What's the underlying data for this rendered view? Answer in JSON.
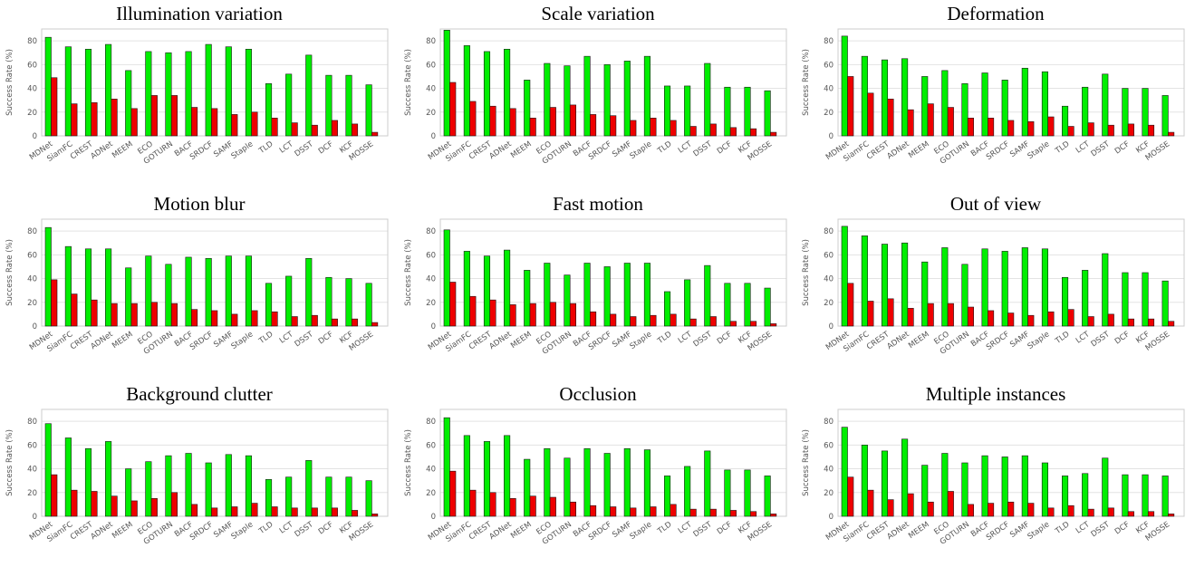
{
  "chart_data": [
    {
      "type": "bar",
      "title": "Illumination variation",
      "ylabel": "Success Rate (%)",
      "ylim": [
        0,
        90
      ],
      "yticks": [
        0,
        20,
        40,
        60,
        80
      ],
      "categories": [
        "MDNet",
        "SiamFC",
        "CREST",
        "ADNet",
        "MEEM",
        "ECO",
        "GOTURN",
        "BACF",
        "SRDCF",
        "SAMF",
        "Staple",
        "TLD",
        "LCT",
        "DSST",
        "DCF",
        "KCF",
        "MOSSE"
      ],
      "series": [
        {
          "color": "#00ee00",
          "values": [
            83,
            75,
            73,
            77,
            55,
            71,
            70,
            71,
            77,
            75,
            73,
            44,
            52,
            68,
            51,
            51,
            43
          ]
        },
        {
          "color": "#ee0000",
          "values": [
            49,
            27,
            28,
            31,
            23,
            34,
            34,
            24,
            23,
            18,
            20,
            15,
            11,
            9,
            13,
            10,
            3
          ]
        }
      ]
    },
    {
      "type": "bar",
      "title": "Scale variation",
      "ylabel": "Success Rate (%)",
      "ylim": [
        0,
        90
      ],
      "yticks": [
        0,
        20,
        40,
        60,
        80
      ],
      "categories": [
        "MDNet",
        "SiamFC",
        "CREST",
        "ADNet",
        "MEEM",
        "ECO",
        "GOTURN",
        "BACF",
        "SRDCF",
        "SAMF",
        "Staple",
        "TLD",
        "LCT",
        "DSST",
        "DCF",
        "KCF",
        "MOSSE"
      ],
      "series": [
        {
          "color": "#00ee00",
          "values": [
            89,
            76,
            71,
            73,
            47,
            61,
            59,
            67,
            60,
            63,
            67,
            42,
            42,
            61,
            41,
            41,
            38
          ]
        },
        {
          "color": "#ee0000",
          "values": [
            45,
            29,
            25,
            23,
            15,
            24,
            26,
            18,
            17,
            13,
            15,
            13,
            8,
            10,
            7,
            6,
            3
          ]
        }
      ]
    },
    {
      "type": "bar",
      "title": "Deformation",
      "ylabel": "Success Rate (%)",
      "ylim": [
        0,
        90
      ],
      "yticks": [
        0,
        20,
        40,
        60,
        80
      ],
      "categories": [
        "MDNet",
        "SiamFC",
        "CREST",
        "ADNet",
        "MEEM",
        "ECO",
        "GOTURN",
        "BACF",
        "SRDCF",
        "SAMF",
        "Staple",
        "TLD",
        "LCT",
        "DSST",
        "DCF",
        "KCF",
        "MOSSE"
      ],
      "series": [
        {
          "color": "#00ee00",
          "values": [
            84,
            67,
            64,
            65,
            50,
            55,
            44,
            53,
            47,
            57,
            54,
            25,
            41,
            52,
            40,
            40,
            34
          ]
        },
        {
          "color": "#ee0000",
          "values": [
            50,
            36,
            31,
            22,
            27,
            24,
            15,
            15,
            13,
            12,
            16,
            8,
            11,
            9,
            10,
            9,
            3
          ]
        }
      ]
    },
    {
      "type": "bar",
      "title": "Motion blur",
      "ylabel": "Success Rate (%)",
      "ylim": [
        0,
        90
      ],
      "yticks": [
        0,
        20,
        40,
        60,
        80
      ],
      "categories": [
        "MDNet",
        "SiamFC",
        "CREST",
        "ADNet",
        "MEEM",
        "ECO",
        "GOTURN",
        "BACF",
        "SRDCF",
        "SAMF",
        "Staple",
        "TLD",
        "LCT",
        "DSST",
        "DCF",
        "KCF",
        "MOSSE"
      ],
      "series": [
        {
          "color": "#00ee00",
          "values": [
            83,
            67,
            65,
            65,
            49,
            59,
            52,
            58,
            57,
            59,
            59,
            36,
            42,
            57,
            41,
            40,
            36
          ]
        },
        {
          "color": "#ee0000",
          "values": [
            39,
            27,
            22,
            19,
            19,
            20,
            19,
            14,
            13,
            10,
            13,
            12,
            8,
            9,
            6,
            6,
            3
          ]
        }
      ]
    },
    {
      "type": "bar",
      "title": "Fast motion",
      "ylabel": "Success Rate (%)",
      "ylim": [
        0,
        90
      ],
      "yticks": [
        0,
        20,
        40,
        60,
        80
      ],
      "categories": [
        "MDNet",
        "SiamFC",
        "CREST",
        "ADNet",
        "MEEM",
        "ECO",
        "GOTURN",
        "BACF",
        "SRDCF",
        "SAMF",
        "Staple",
        "TLD",
        "LCT",
        "DSST",
        "DCF",
        "KCF",
        "MOSSE"
      ],
      "series": [
        {
          "color": "#00ee00",
          "values": [
            81,
            63,
            59,
            64,
            47,
            53,
            43,
            53,
            50,
            53,
            53,
            29,
            39,
            51,
            36,
            36,
            32
          ]
        },
        {
          "color": "#ee0000",
          "values": [
            37,
            25,
            22,
            18,
            19,
            20,
            19,
            12,
            10,
            8,
            9,
            10,
            6,
            8,
            4,
            4,
            2
          ]
        }
      ]
    },
    {
      "type": "bar",
      "title": "Out of view",
      "ylabel": "Success Rate (%)",
      "ylim": [
        0,
        90
      ],
      "yticks": [
        0,
        20,
        40,
        60,
        80
      ],
      "categories": [
        "MDNet",
        "SiamFC",
        "CREST",
        "ADNet",
        "MEEM",
        "ECO",
        "GOTURN",
        "BACF",
        "SRDCF",
        "SAMF",
        "Staple",
        "TLD",
        "LCT",
        "DSST",
        "DCF",
        "KCF",
        "MOSSE"
      ],
      "series": [
        {
          "color": "#00ee00",
          "values": [
            84,
            76,
            69,
            70,
            54,
            66,
            52,
            65,
            63,
            66,
            65,
            41,
            47,
            61,
            45,
            45,
            38
          ]
        },
        {
          "color": "#ee0000",
          "values": [
            36,
            21,
            23,
            15,
            19,
            19,
            16,
            13,
            11,
            9,
            12,
            14,
            8,
            10,
            6,
            6,
            4
          ]
        }
      ]
    },
    {
      "type": "bar",
      "title": "Background clutter",
      "ylabel": "Success Rate (%)",
      "ylim": [
        0,
        90
      ],
      "yticks": [
        0,
        20,
        40,
        60,
        80
      ],
      "categories": [
        "MDNet",
        "SiamFC",
        "CREST",
        "ADNet",
        "MEEM",
        "ECO",
        "GOTURN",
        "BACF",
        "SRDCF",
        "SAMF",
        "Staple",
        "TLD",
        "LCT",
        "DSST",
        "DCF",
        "KCF",
        "MOSSE"
      ],
      "series": [
        {
          "color": "#00ee00",
          "values": [
            78,
            66,
            57,
            63,
            40,
            46,
            51,
            53,
            45,
            52,
            51,
            31,
            33,
            47,
            33,
            33,
            30
          ]
        },
        {
          "color": "#ee0000",
          "values": [
            35,
            22,
            21,
            17,
            13,
            15,
            20,
            10,
            7,
            8,
            11,
            8,
            7,
            7,
            7,
            5,
            2
          ]
        }
      ]
    },
    {
      "type": "bar",
      "title": "Occlusion",
      "ylabel": "Success Rate (%)",
      "ylim": [
        0,
        90
      ],
      "yticks": [
        0,
        20,
        40,
        60,
        80
      ],
      "categories": [
        "MDNet",
        "SiamFC",
        "CREST",
        "ADNet",
        "MEEM",
        "ECO",
        "GOTURN",
        "BACF",
        "SRDCF",
        "SAMF",
        "Staple",
        "TLD",
        "LCT",
        "DSST",
        "DCF",
        "KCF",
        "MOSSE"
      ],
      "series": [
        {
          "color": "#00ee00",
          "values": [
            83,
            68,
            63,
            68,
            48,
            57,
            49,
            57,
            53,
            57,
            56,
            34,
            42,
            55,
            39,
            39,
            34
          ]
        },
        {
          "color": "#ee0000",
          "values": [
            38,
            22,
            20,
            15,
            17,
            16,
            12,
            9,
            8,
            7,
            8,
            10,
            6,
            6,
            5,
            4,
            2
          ]
        }
      ]
    },
    {
      "type": "bar",
      "title": "Multiple instances",
      "ylabel": "Success Rate (%)",
      "ylim": [
        0,
        90
      ],
      "yticks": [
        0,
        20,
        40,
        60,
        80
      ],
      "categories": [
        "MDNet",
        "SiamFC",
        "CREST",
        "ADNet",
        "MEEM",
        "ECO",
        "GOTURN",
        "BACF",
        "SRDCF",
        "SAMF",
        "Staple",
        "TLD",
        "LCT",
        "DSST",
        "DCF",
        "KCF",
        "MOSSE"
      ],
      "series": [
        {
          "color": "#00ee00",
          "values": [
            75,
            60,
            55,
            65,
            43,
            53,
            45,
            51,
            50,
            51,
            45,
            34,
            36,
            49,
            35,
            35,
            34
          ]
        },
        {
          "color": "#ee0000",
          "values": [
            33,
            22,
            14,
            19,
            12,
            21,
            10,
            11,
            12,
            11,
            7,
            9,
            6,
            7,
            4,
            4,
            2
          ]
        }
      ]
    }
  ]
}
